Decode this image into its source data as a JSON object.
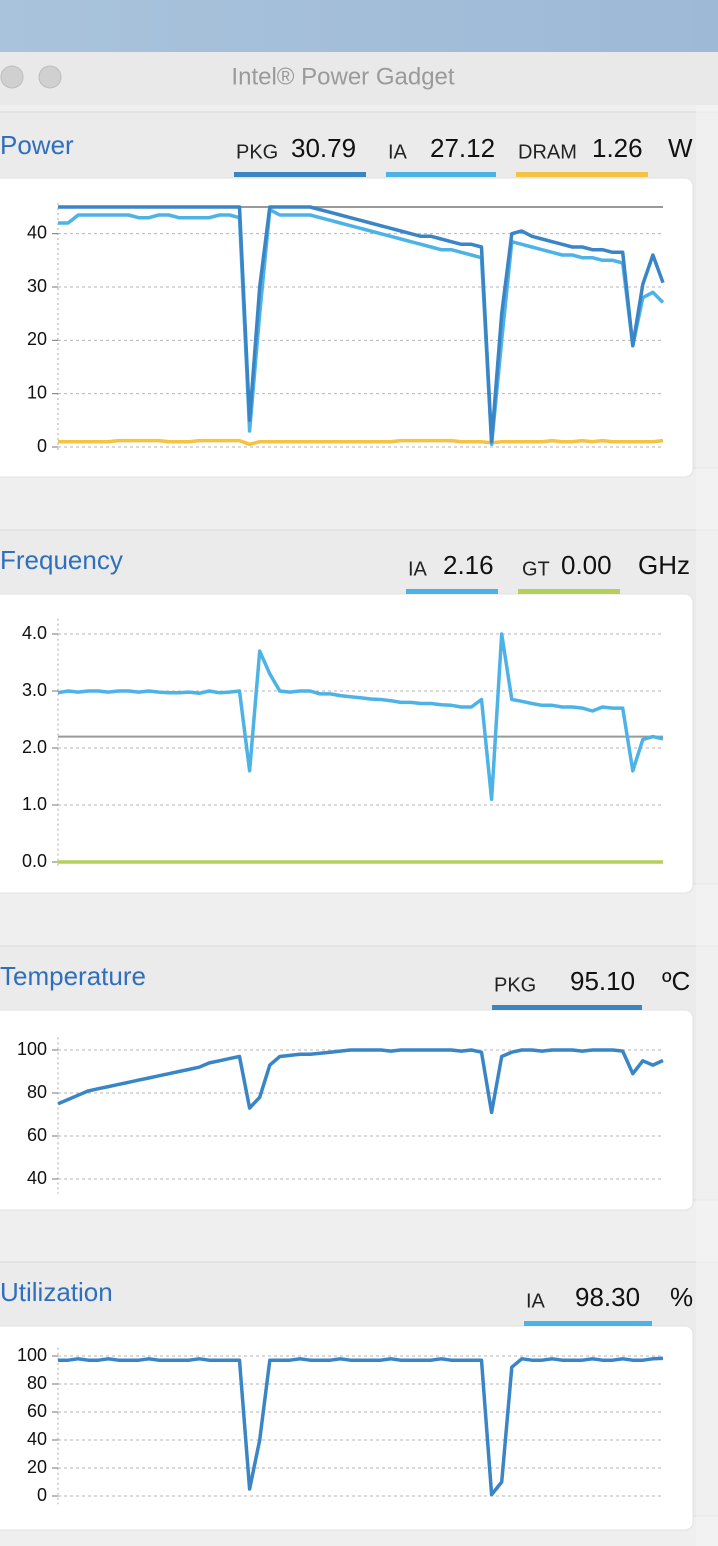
{
  "window": {
    "title": "Intel® Power Gadget"
  },
  "chart_data": [
    {
      "type": "line",
      "title": "Power",
      "unit": "W",
      "ylim": [
        0,
        45
      ],
      "yticks": [
        0,
        10,
        20,
        30,
        40
      ],
      "grid": true,
      "limit": 45,
      "series": [
        {
          "name": "PKG",
          "color": "#3a85c6",
          "current": 30.79,
          "values": [
            45,
            45,
            45,
            45,
            45,
            45,
            45,
            45,
            45,
            45,
            45,
            45,
            45,
            45,
            45,
            45,
            45,
            45,
            45,
            5,
            30,
            45,
            45,
            45,
            45,
            45,
            44.5,
            44,
            43.5,
            43,
            42.5,
            42,
            41.5,
            41,
            40.5,
            40,
            39.5,
            39.5,
            39,
            38.5,
            38,
            38,
            37.5,
            1,
            25,
            40,
            40.5,
            39.5,
            39,
            38.5,
            38,
            37.5,
            37.5,
            37,
            37,
            36.5,
            36.5,
            19,
            30.5,
            36,
            30.8
          ]
        },
        {
          "name": "IA",
          "color": "#4db3e6",
          "current": 27.12,
          "values": [
            42,
            42,
            43.5,
            43.5,
            43.5,
            43.5,
            43.5,
            43.5,
            43,
            43,
            43.5,
            43.5,
            43,
            43,
            43,
            43,
            43.5,
            43.5,
            43,
            3,
            25,
            44.5,
            43.5,
            43.5,
            43.5,
            43.5,
            43,
            42.5,
            42,
            41.5,
            41,
            40.5,
            40,
            39.5,
            39,
            38.5,
            38,
            37.5,
            37,
            37,
            36.5,
            36,
            35.5,
            0.5,
            20,
            38.5,
            38,
            37.5,
            37,
            36.5,
            36,
            36,
            35.5,
            35.5,
            35,
            35,
            34.5,
            19,
            28,
            29,
            27.1
          ]
        },
        {
          "name": "DRAM",
          "color": "#f5c342",
          "current": 1.26,
          "values": [
            1,
            1,
            1,
            1,
            1,
            1,
            1.2,
            1.2,
            1.2,
            1.2,
            1.2,
            1,
            1,
            1,
            1.2,
            1.2,
            1.2,
            1.2,
            1.2,
            0.5,
            1,
            1,
            1,
            1,
            1,
            1,
            1,
            1,
            1,
            1,
            1,
            1,
            1,
            1,
            1.2,
            1.2,
            1.2,
            1.2,
            1.2,
            1.2,
            1,
            1,
            1,
            0.8,
            1,
            1,
            1,
            1,
            1,
            1.2,
            1,
            1,
            1.2,
            1,
            1.2,
            1,
            1,
            1,
            1,
            1,
            1.2
          ]
        }
      ]
    },
    {
      "type": "line",
      "title": "Frequency",
      "unit": "GHz",
      "ylim": [
        0,
        4.2
      ],
      "yticks": [
        {
          "value": 0,
          "label": "0.0"
        },
        {
          "value": 1,
          "label": "1.0"
        },
        {
          "value": 2,
          "label": "2.0"
        },
        {
          "value": 3,
          "label": "3.0"
        },
        {
          "value": 4,
          "label": "4.0"
        }
      ],
      "grid": true,
      "limit": 2.2,
      "series": [
        {
          "name": "IA",
          "color": "#4db3e6",
          "current": 2.16,
          "values": [
            2.97,
            3.0,
            2.98,
            3.0,
            3.0,
            2.98,
            3.0,
            3.0,
            2.98,
            3.0,
            2.98,
            2.97,
            2.97,
            2.98,
            2.96,
            3.0,
            2.97,
            2.98,
            3.0,
            1.6,
            3.7,
            3.3,
            3.0,
            2.98,
            3.0,
            3.0,
            2.95,
            2.95,
            2.92,
            2.9,
            2.88,
            2.86,
            2.85,
            2.83,
            2.8,
            2.8,
            2.78,
            2.78,
            2.76,
            2.75,
            2.72,
            2.72,
            2.85,
            1.1,
            4.0,
            2.85,
            2.82,
            2.78,
            2.75,
            2.75,
            2.72,
            2.72,
            2.7,
            2.65,
            2.72,
            2.7,
            2.7,
            1.6,
            2.15,
            2.2,
            2.16
          ]
        },
        {
          "name": "GT",
          "color": "#b5cf58",
          "current": {
            "value": 0,
            "label": "0.00"
          },
          "values": [
            0,
            0,
            0,
            0,
            0,
            0,
            0,
            0,
            0,
            0,
            0,
            0,
            0,
            0,
            0,
            0,
            0,
            0,
            0,
            0,
            0,
            0,
            0,
            0,
            0,
            0,
            0,
            0,
            0,
            0,
            0,
            0,
            0,
            0,
            0,
            0,
            0,
            0,
            0,
            0,
            0,
            0,
            0,
            0,
            0,
            0,
            0,
            0,
            0,
            0,
            0,
            0,
            0,
            0,
            0,
            0,
            0,
            0,
            0,
            0,
            0
          ]
        }
      ]
    },
    {
      "type": "line",
      "title": "Temperature",
      "unit": "ºC",
      "ylim": [
        35,
        104
      ],
      "yticks": [
        40,
        60,
        80,
        100
      ],
      "grid": true,
      "series": [
        {
          "name": "PKG",
          "color": "#3a85c6",
          "current": {
            "value": 95.1,
            "label": "95.10"
          },
          "values": [
            75,
            77,
            79,
            81,
            82,
            83,
            84,
            85,
            86,
            87,
            88,
            89,
            90,
            91,
            92,
            94,
            95,
            96,
            97,
            73,
            78,
            93,
            97,
            97.5,
            98,
            98,
            98.5,
            99,
            99.5,
            100,
            100,
            100,
            100,
            99.5,
            100,
            100,
            100,
            100,
            100,
            100,
            99.5,
            100,
            99,
            71,
            97,
            99,
            100,
            100,
            99.5,
            100,
            100,
            100,
            99.5,
            100,
            100,
            100,
            99.5,
            89,
            95,
            93,
            95.1
          ]
        }
      ]
    },
    {
      "type": "line",
      "title": "Utilization",
      "unit": "%",
      "ylim": [
        -3,
        103
      ],
      "yticks": [
        0,
        20,
        40,
        60,
        80,
        100
      ],
      "grid": true,
      "series": [
        {
          "name": "IA",
          "color": "#3a85c6",
          "legend_color": "#4db3e6",
          "current": {
            "value": 98.3,
            "label": "98.30"
          },
          "values": [
            97,
            97,
            98,
            97,
            97,
            98,
            97,
            97,
            97,
            98,
            97,
            97,
            97,
            97,
            98,
            97,
            97,
            97,
            97,
            5,
            40,
            97,
            97,
            97,
            98,
            97,
            97,
            97,
            98,
            97,
            97,
            97,
            97,
            98,
            97,
            97,
            97,
            97,
            98,
            97,
            97,
            97,
            97,
            1,
            10,
            92,
            98,
            97,
            97,
            98,
            97,
            97,
            97,
            98,
            97,
            97,
            98,
            97,
            97,
            98,
            98.3
          ]
        }
      ]
    }
  ]
}
